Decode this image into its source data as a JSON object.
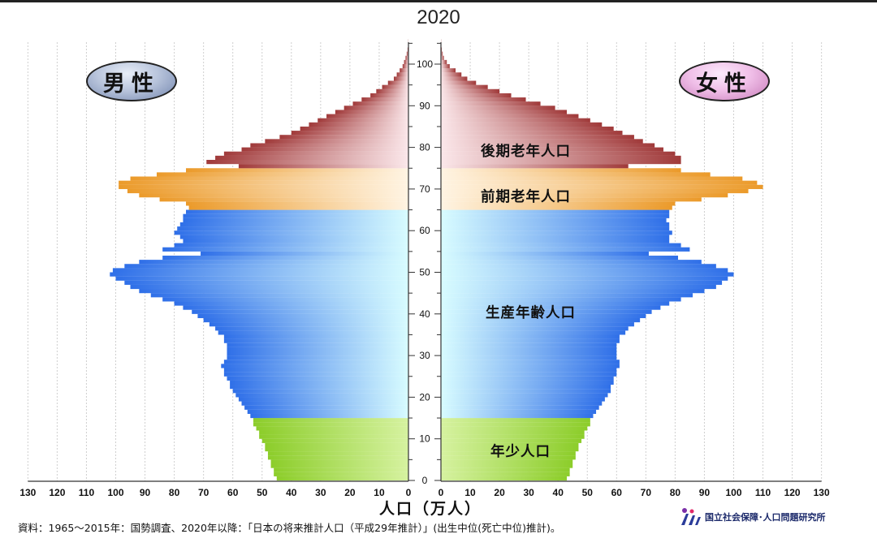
{
  "header": {
    "title": "2020"
  },
  "badges": {
    "male": "男性",
    "female": "女性"
  },
  "group_labels": {
    "late_elderly": "後期老年人口",
    "early_elderly": "前期老年人口",
    "working_age": "生産年齢人口",
    "youth": "年少人口"
  },
  "footer": {
    "axis_title": "人口（万人）",
    "source": "資料：1965〜2015年：国勢調査、2020年以降：「日本の将来推計人口（平成29年推計）」(出生中位(死亡中位)推計)。",
    "organization": "国立社会保障･人口問題研究所"
  },
  "colors": {
    "youth": "#8ccd2a",
    "working": "#2f6fe8",
    "early_elderly": "#eb9a2a",
    "late_elderly": "#a03a3a",
    "fade": "#d8fcff"
  },
  "chart_data": {
    "type": "population-pyramid",
    "title": "2020",
    "xlabel": "人口（万人）",
    "x_ticks": [
      0,
      10,
      20,
      30,
      40,
      50,
      60,
      70,
      80,
      90,
      100,
      110,
      120,
      130
    ],
    "y_ticks": [
      0,
      10,
      20,
      30,
      40,
      50,
      60,
      70,
      80,
      90,
      100
    ],
    "xlim": [
      0,
      130
    ],
    "ylim": [
      0,
      105
    ],
    "groups": [
      {
        "name": "年少人口",
        "age_range": [
          0,
          14
        ]
      },
      {
        "name": "生産年齢人口",
        "age_range": [
          15,
          64
        ]
      },
      {
        "name": "前期老年人口",
        "age_range": [
          65,
          74
        ]
      },
      {
        "name": "後期老年人口",
        "age_range": [
          75,
          105
        ]
      }
    ],
    "series": [
      {
        "name": "男性",
        "values": [
          45,
          46,
          46,
          47,
          47,
          48,
          48,
          49,
          49,
          50,
          51,
          51,
          52,
          53,
          53,
          54,
          55,
          56,
          57,
          58,
          59,
          60,
          61,
          61,
          62,
          63,
          63,
          64,
          63,
          62,
          62,
          62,
          62,
          63,
          63,
          65,
          66,
          68,
          70,
          72,
          74,
          77,
          80,
          84,
          88,
          92,
          95,
          97,
          100,
          102,
          101,
          97,
          92,
          84,
          71,
          84,
          80,
          77,
          78,
          80,
          79,
          78,
          77,
          77,
          76,
          75,
          76,
          85,
          92,
          96,
          99,
          99,
          95,
          86,
          76,
          58,
          69,
          66,
          63,
          57,
          54,
          49,
          44,
          40,
          37,
          34,
          31,
          28,
          25,
          22,
          19,
          16,
          13,
          11,
          9,
          7,
          5,
          4,
          3,
          2,
          1.5,
          1,
          0.6,
          0.3,
          0.1,
          0.05
        ]
      },
      {
        "name": "女性",
        "values": [
          43,
          44,
          44,
          45,
          45,
          46,
          46,
          47,
          47,
          48,
          49,
          49,
          50,
          51,
          51,
          52,
          53,
          54,
          55,
          56,
          57,
          58,
          58,
          59,
          59,
          60,
          60,
          61,
          61,
          60,
          60,
          60,
          60,
          61,
          61,
          63,
          64,
          66,
          68,
          70,
          72,
          75,
          78,
          82,
          86,
          90,
          94,
          96,
          98,
          100,
          98,
          94,
          89,
          81,
          71,
          85,
          82,
          78,
          78,
          79,
          78,
          78,
          77,
          78,
          78,
          79,
          80,
          89,
          98,
          105,
          110,
          108,
          103,
          92,
          82,
          64,
          82,
          82,
          80,
          76,
          73,
          69,
          66,
          62,
          59,
          55,
          51,
          47,
          43,
          39,
          34,
          29,
          24,
          20,
          16,
          12,
          9,
          7,
          5,
          3,
          2,
          1,
          0.6,
          0.3,
          0.1,
          0.05
        ]
      }
    ]
  }
}
